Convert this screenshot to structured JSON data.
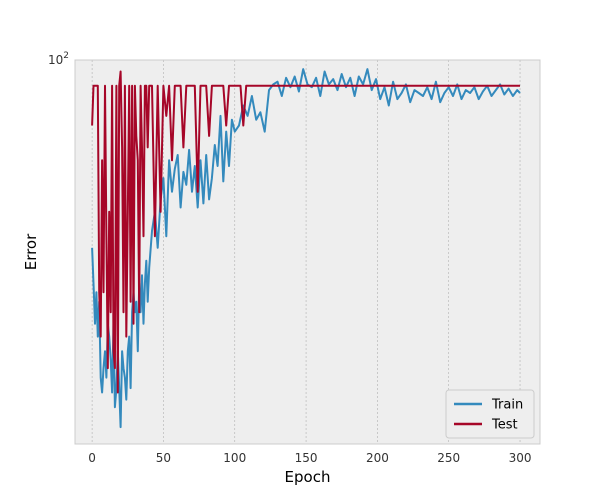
{
  "chart_data": {
    "type": "line",
    "title": "",
    "xlabel": "Epoch",
    "ylabel": "Error",
    "xlim": [
      -12,
      314
    ],
    "ylim": [
      3.0,
      100.0
    ],
    "y_scale": "log",
    "x_ticks": [
      0,
      50,
      100,
      150,
      200,
      250,
      300
    ],
    "y_ticks": [
      100
    ],
    "y_tick_labels": [
      {
        "base": "10",
        "exp": "2"
      }
    ],
    "grid": true,
    "legend_position": "lower-right",
    "colors": {
      "background": "#eeeeee",
      "grid": "#b0b0b0",
      "frame": "#cccccc"
    },
    "series": [
      {
        "name": "Train",
        "color": "#348abd",
        "x": [
          0,
          1,
          2,
          3,
          4,
          5,
          6,
          7,
          8,
          9,
          10,
          11,
          12,
          13,
          14,
          15,
          16,
          17,
          18,
          19,
          20,
          21,
          22,
          23,
          24,
          25,
          26,
          27,
          28,
          29,
          30,
          31,
          32,
          33,
          34,
          35,
          36,
          37,
          38,
          39,
          40,
          42,
          44,
          46,
          48,
          50,
          52,
          54,
          56,
          58,
          60,
          62,
          64,
          66,
          68,
          70,
          72,
          74,
          76,
          78,
          80,
          82,
          84,
          86,
          88,
          90,
          92,
          94,
          96,
          98,
          100,
          103,
          106,
          109,
          112,
          115,
          118,
          121,
          124,
          127,
          130,
          133,
          136,
          139,
          142,
          145,
          148,
          151,
          154,
          157,
          160,
          163,
          166,
          169,
          172,
          175,
          178,
          181,
          184,
          187,
          190,
          193,
          196,
          199,
          202,
          205,
          208,
          211,
          214,
          217,
          220,
          223,
          226,
          229,
          232,
          235,
          238,
          241,
          244,
          247,
          250,
          253,
          256,
          259,
          262,
          265,
          268,
          271,
          274,
          277,
          280,
          283,
          286,
          289,
          292,
          295,
          298,
          300
        ],
        "y": [
          18,
          13,
          9,
          12,
          8,
          11,
          5.5,
          4.8,
          6,
          7,
          5.5,
          9,
          8,
          6.5,
          4.8,
          9,
          4.2,
          5,
          7,
          5,
          3.5,
          7,
          6,
          5.5,
          4.5,
          7,
          8,
          5,
          10,
          12,
          10,
          11,
          7,
          13,
          10,
          14,
          9,
          13,
          16,
          11,
          15,
          21,
          25,
          18,
          28,
          34,
          20,
          40,
          30,
          37,
          42,
          26,
          36,
          32,
          44,
          30,
          38,
          26,
          40,
          27,
          42,
          28,
          34,
          46,
          38,
          60,
          33,
          52,
          38,
          58,
          52,
          55,
          66,
          60,
          72,
          58,
          62,
          52,
          76,
          80,
          82,
          72,
          85,
          78,
          86,
          75,
          92,
          80,
          78,
          85,
          72,
          90,
          80,
          84,
          76,
          88,
          78,
          85,
          72,
          86,
          80,
          92,
          76,
          84,
          70,
          78,
          66,
          82,
          70,
          74,
          80,
          68,
          76,
          74,
          72,
          78,
          70,
          82,
          68,
          74,
          78,
          72,
          80,
          70,
          76,
          74,
          78,
          70,
          75,
          79,
          72,
          76,
          80,
          73,
          77,
          72,
          76,
          74
        ]
      },
      {
        "name": "Test",
        "color": "#a60628",
        "x": [
          0,
          1,
          2,
          3,
          4,
          5,
          6,
          7,
          8,
          9,
          10,
          11,
          12,
          13,
          14,
          15,
          16,
          17,
          18,
          19,
          20,
          21,
          22,
          23,
          24,
          25,
          26,
          27,
          28,
          29,
          30,
          31,
          32,
          33,
          34,
          35,
          36,
          37,
          38,
          39,
          40,
          42,
          44,
          46,
          48,
          50,
          52,
          54,
          56,
          58,
          60,
          62,
          64,
          66,
          68,
          70,
          72,
          74,
          76,
          78,
          80,
          82,
          84,
          86,
          88,
          90,
          92,
          94,
          96,
          98,
          100,
          102,
          104,
          106,
          108,
          110,
          112,
          114,
          116,
          118,
          120,
          150,
          200,
          250,
          300
        ],
        "y": [
          55,
          79,
          79,
          79,
          79,
          12,
          8,
          40,
          12,
          79,
          20,
          6,
          25,
          10,
          79,
          7,
          6,
          79,
          4.8,
          79,
          90,
          45,
          10,
          79,
          8,
          25,
          79,
          11,
          79,
          9,
          79,
          50,
          40,
          10,
          79,
          45,
          20,
          79,
          79,
          45,
          79,
          79,
          20,
          79,
          25,
          79,
          60,
          79,
          40,
          79,
          79,
          79,
          45,
          79,
          79,
          79,
          79,
          30,
          79,
          79,
          79,
          50,
          79,
          79,
          79,
          79,
          79,
          55,
          79,
          79,
          79,
          79,
          79,
          55,
          79,
          79,
          79,
          79,
          79,
          79,
          79,
          79,
          79,
          79,
          79
        ]
      }
    ]
  }
}
